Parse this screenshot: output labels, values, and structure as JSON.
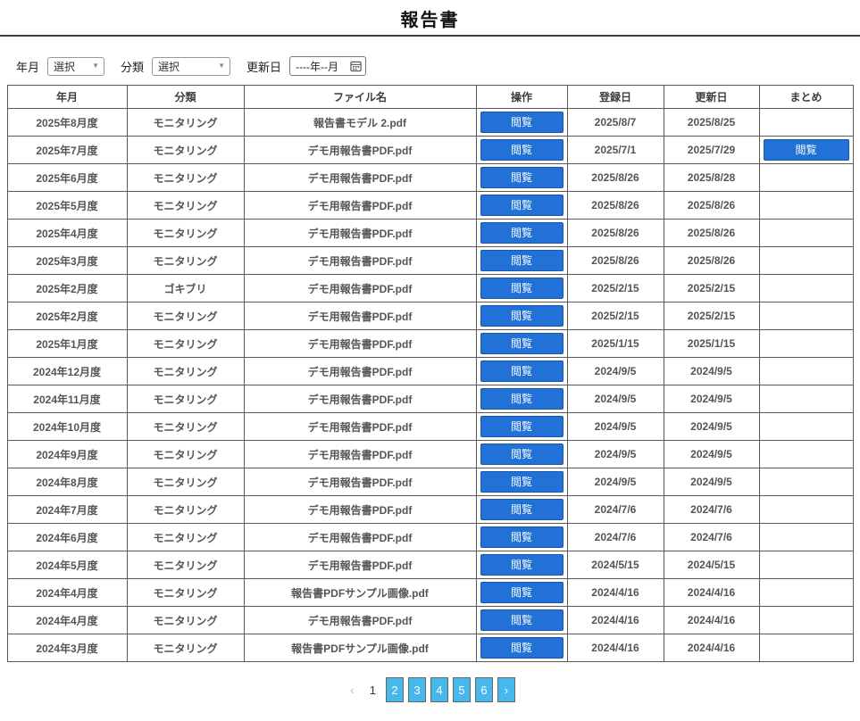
{
  "page": {
    "title": "報告書"
  },
  "filters": {
    "yearmonth_label": "年月",
    "yearmonth_value": "選択",
    "category_label": "分類",
    "category_value": "選択",
    "updated_label": "更新日",
    "updated_value": "----年--月"
  },
  "table": {
    "headers": {
      "yearmonth": "年月",
      "category": "分類",
      "filename": "ファイル名",
      "operation": "操作",
      "registered": "登録日",
      "updated": "更新日",
      "matome": "まとめ"
    },
    "view_label": "閲覧",
    "rows": [
      {
        "yearmonth": "2025年8月度",
        "category": "モニタリング",
        "filename": "報告書モデル 2.pdf",
        "registered": "2025/8/7",
        "updated": "2025/8/25",
        "matome": false
      },
      {
        "yearmonth": "2025年7月度",
        "category": "モニタリング",
        "filename": "デモ用報告書PDF.pdf",
        "registered": "2025/7/1",
        "updated": "2025/7/29",
        "matome": true
      },
      {
        "yearmonth": "2025年6月度",
        "category": "モニタリング",
        "filename": "デモ用報告書PDF.pdf",
        "registered": "2025/8/26",
        "updated": "2025/8/28",
        "matome": false
      },
      {
        "yearmonth": "2025年5月度",
        "category": "モニタリング",
        "filename": "デモ用報告書PDF.pdf",
        "registered": "2025/8/26",
        "updated": "2025/8/26",
        "matome": false
      },
      {
        "yearmonth": "2025年4月度",
        "category": "モニタリング",
        "filename": "デモ用報告書PDF.pdf",
        "registered": "2025/8/26",
        "updated": "2025/8/26",
        "matome": false
      },
      {
        "yearmonth": "2025年3月度",
        "category": "モニタリング",
        "filename": "デモ用報告書PDF.pdf",
        "registered": "2025/8/26",
        "updated": "2025/8/26",
        "matome": false
      },
      {
        "yearmonth": "2025年2月度",
        "category": "ゴキブリ",
        "filename": "デモ用報告書PDF.pdf",
        "registered": "2025/2/15",
        "updated": "2025/2/15",
        "matome": false
      },
      {
        "yearmonth": "2025年2月度",
        "category": "モニタリング",
        "filename": "デモ用報告書PDF.pdf",
        "registered": "2025/2/15",
        "updated": "2025/2/15",
        "matome": false
      },
      {
        "yearmonth": "2025年1月度",
        "category": "モニタリング",
        "filename": "デモ用報告書PDF.pdf",
        "registered": "2025/1/15",
        "updated": "2025/1/15",
        "matome": false
      },
      {
        "yearmonth": "2024年12月度",
        "category": "モニタリング",
        "filename": "デモ用報告書PDF.pdf",
        "registered": "2024/9/5",
        "updated": "2024/9/5",
        "matome": false
      },
      {
        "yearmonth": "2024年11月度",
        "category": "モニタリング",
        "filename": "デモ用報告書PDF.pdf",
        "registered": "2024/9/5",
        "updated": "2024/9/5",
        "matome": false
      },
      {
        "yearmonth": "2024年10月度",
        "category": "モニタリング",
        "filename": "デモ用報告書PDF.pdf",
        "registered": "2024/9/5",
        "updated": "2024/9/5",
        "matome": false
      },
      {
        "yearmonth": "2024年9月度",
        "category": "モニタリング",
        "filename": "デモ用報告書PDF.pdf",
        "registered": "2024/9/5",
        "updated": "2024/9/5",
        "matome": false
      },
      {
        "yearmonth": "2024年8月度",
        "category": "モニタリング",
        "filename": "デモ用報告書PDF.pdf",
        "registered": "2024/9/5",
        "updated": "2024/9/5",
        "matome": false
      },
      {
        "yearmonth": "2024年7月度",
        "category": "モニタリング",
        "filename": "デモ用報告書PDF.pdf",
        "registered": "2024/7/6",
        "updated": "2024/7/6",
        "matome": false
      },
      {
        "yearmonth": "2024年6月度",
        "category": "モニタリング",
        "filename": "デモ用報告書PDF.pdf",
        "registered": "2024/7/6",
        "updated": "2024/7/6",
        "matome": false
      },
      {
        "yearmonth": "2024年5月度",
        "category": "モニタリング",
        "filename": "デモ用報告書PDF.pdf",
        "registered": "2024/5/15",
        "updated": "2024/5/15",
        "matome": false
      },
      {
        "yearmonth": "2024年4月度",
        "category": "モニタリング",
        "filename": "報告書PDFサンプル画像.pdf",
        "registered": "2024/4/16",
        "updated": "2024/4/16",
        "matome": false
      },
      {
        "yearmonth": "2024年4月度",
        "category": "モニタリング",
        "filename": "デモ用報告書PDF.pdf",
        "registered": "2024/4/16",
        "updated": "2024/4/16",
        "matome": false
      },
      {
        "yearmonth": "2024年3月度",
        "category": "モニタリング",
        "filename": "報告書PDFサンプル画像.pdf",
        "registered": "2024/4/16",
        "updated": "2024/4/16",
        "matome": false
      }
    ]
  },
  "pagination": {
    "prev": "‹",
    "current": "1",
    "pages": [
      "2",
      "3",
      "4",
      "5",
      "6"
    ],
    "next": "›"
  },
  "colors": {
    "view_button_blue": "#2271d7",
    "page_button_blue": "#47b8eb",
    "table_border": "#595959"
  }
}
